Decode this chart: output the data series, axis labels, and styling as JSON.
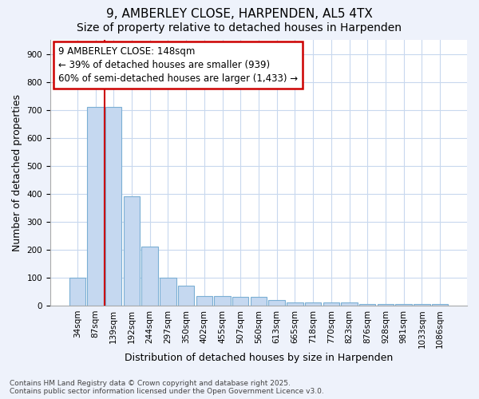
{
  "title1": "9, AMBERLEY CLOSE, HARPENDEN, AL5 4TX",
  "title2": "Size of property relative to detached houses in Harpenden",
  "xlabel": "Distribution of detached houses by size in Harpenden",
  "ylabel": "Number of detached properties",
  "categories": [
    "34sqm",
    "87sqm",
    "139sqm",
    "192sqm",
    "244sqm",
    "297sqm",
    "350sqm",
    "402sqm",
    "455sqm",
    "507sqm",
    "560sqm",
    "613sqm",
    "665sqm",
    "718sqm",
    "770sqm",
    "823sqm",
    "876sqm",
    "928sqm",
    "981sqm",
    "1033sqm",
    "1086sqm"
  ],
  "values": [
    100,
    710,
    710,
    390,
    210,
    100,
    70,
    35,
    35,
    30,
    30,
    20,
    10,
    10,
    10,
    10,
    5,
    5,
    5,
    5,
    5
  ],
  "bar_color": "#c5d8f0",
  "bar_edge_color": "#7bafd4",
  "grid_color": "#c8d8ee",
  "background_color": "#eef2fb",
  "plot_background": "#ffffff",
  "vline_x": 1.5,
  "vline_color": "#cc0000",
  "annotation_text": "9 AMBERLEY CLOSE: 148sqm\n← 39% of detached houses are smaller (939)\n60% of semi-detached houses are larger (1,433) →",
  "annotation_box_color": "#ffffff",
  "annotation_box_edge_color": "#cc0000",
  "ylim": [
    0,
    950
  ],
  "yticks": [
    0,
    100,
    200,
    300,
    400,
    500,
    600,
    700,
    800,
    900
  ],
  "footer_text": "Contains HM Land Registry data © Crown copyright and database right 2025.\nContains public sector information licensed under the Open Government Licence v3.0.",
  "title1_fontsize": 11,
  "title2_fontsize": 10,
  "tick_fontsize": 7.5,
  "label_fontsize": 9,
  "annotation_fontsize": 8.5
}
